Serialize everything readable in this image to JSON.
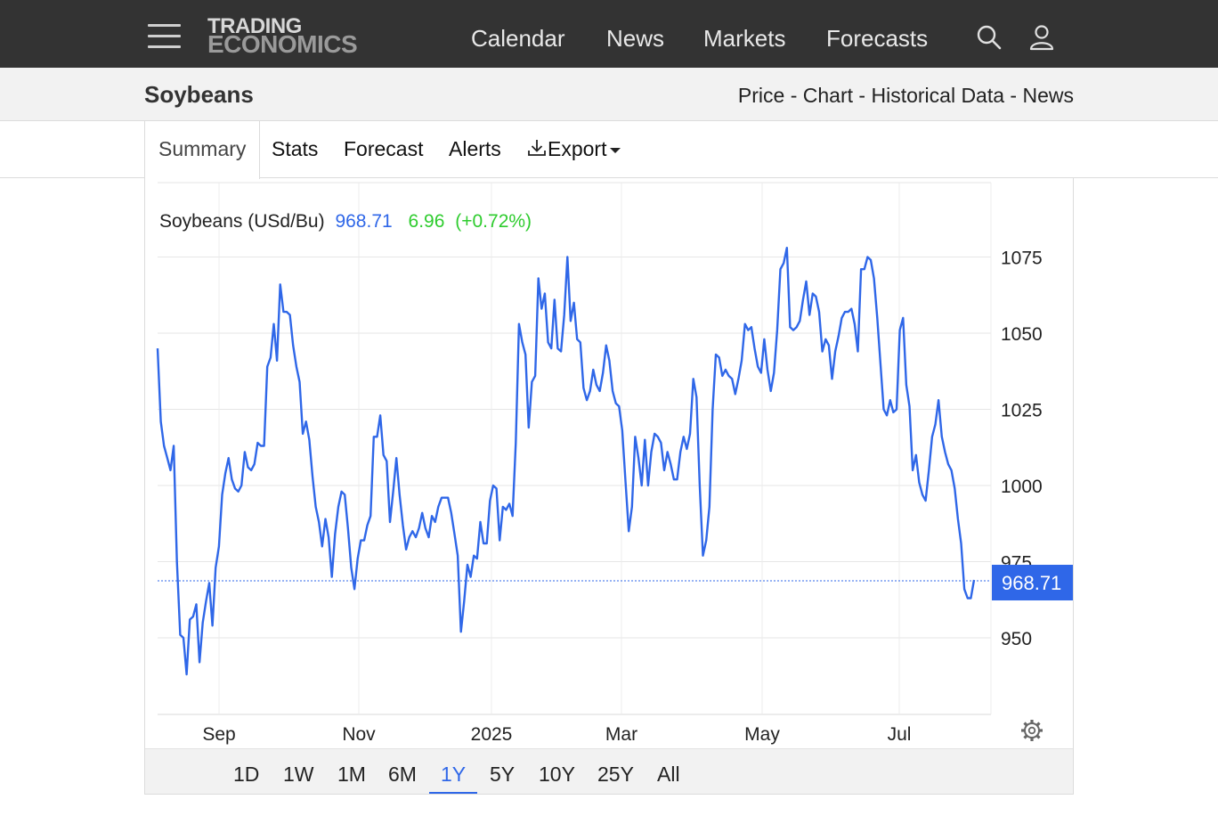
{
  "nav": {
    "logo_line1": "TRADING",
    "logo_line2": "ECONOMICS",
    "links": [
      "Calendar",
      "News",
      "Markets",
      "Forecasts"
    ],
    "icons": [
      "menu-icon",
      "search-icon",
      "user-icon"
    ]
  },
  "header": {
    "title": "Soybeans",
    "links": [
      "Price",
      "Chart",
      "Historical Data",
      "News"
    ],
    "separator": " - "
  },
  "tabs": [
    "Summary",
    "Stats",
    "Forecast",
    "Alerts",
    "Export"
  ],
  "active_tab": "Summary",
  "chart_legend": {
    "name": "Soybeans (USd/Bu)",
    "price": "968.71",
    "change": "6.96",
    "change_pct": "(+0.72%)"
  },
  "colors": {
    "line": "#2f67e8",
    "change": "#2ecc2e",
    "topbar": "#333333",
    "price_tag": "#2f67e8"
  },
  "ranges": [
    "1D",
    "1W",
    "1M",
    "6M",
    "1Y",
    "5Y",
    "10Y",
    "25Y",
    "All"
  ],
  "active_range": "1Y",
  "chart_data": {
    "type": "line",
    "title": "Soybeans (USd/Bu)",
    "xlabel": "",
    "ylabel": "",
    "x_ticks": [
      "Sep",
      "Nov",
      "2025",
      "Mar",
      "May",
      "Jul"
    ],
    "y_ticks": [
      950,
      975,
      1000,
      1025,
      1050,
      1075
    ],
    "ylim": [
      925,
      1100
    ],
    "grid": true,
    "last_value": 968.71,
    "last_label": "968.71",
    "series": [
      {
        "values": [
          1045,
          1021,
          1013,
          1009,
          1005,
          1013,
          975,
          951,
          950,
          938,
          956,
          957,
          961,
          942,
          955,
          962,
          968,
          954,
          973,
          980,
          997,
          1004,
          1009,
          1002,
          999,
          998,
          1000,
          1011,
          1006,
          1005,
          1007,
          1014,
          1013,
          1013,
          1039,
          1042,
          1053,
          1041,
          1066,
          1057,
          1057,
          1056,
          1046,
          1039,
          1034,
          1017,
          1021,
          1015,
          1003,
          993,
          988,
          980,
          989,
          983,
          970,
          984,
          993,
          998,
          997,
          986,
          973,
          966,
          976,
          982,
          982,
          987,
          990,
          1016,
          1016,
          1023,
          1010,
          1008,
          988,
          998,
          1009,
          997,
          987,
          979,
          983,
          985,
          983,
          986,
          991,
          986,
          983,
          990,
          988,
          993,
          996,
          996,
          996,
          991,
          984,
          977,
          952,
          962,
          974,
          970,
          977,
          976,
          988,
          981,
          981,
          995,
          1000,
          999,
          982,
          993,
          992,
          994,
          990,
          1014,
          1053,
          1047,
          1043,
          1019,
          1034,
          1036,
          1068,
          1058,
          1063,
          1047,
          1045,
          1061,
          1045,
          1044,
          1056,
          1075,
          1054,
          1060,
          1048,
          1047,
          1032,
          1028,
          1031,
          1038,
          1033,
          1031,
          1037,
          1046,
          1041,
          1031,
          1027,
          1026,
          1018,
          1001,
          985,
          993,
          1016,
          1009,
          1000,
          1015,
          1000,
          1011,
          1017,
          1016,
          1014,
          1005,
          1011,
          1007,
          1002,
          1002,
          1011,
          1016,
          1012,
          1017,
          1035,
          1029,
          1000,
          977,
          982,
          993,
          1025,
          1043,
          1042,
          1036,
          1038,
          1036,
          1035,
          1030,
          1035,
          1041,
          1053,
          1051,
          1052,
          1045,
          1039,
          1037,
          1048,
          1038,
          1031,
          1037,
          1051,
          1071,
          1073,
          1078,
          1052,
          1051,
          1052,
          1054,
          1061,
          1067,
          1056,
          1063,
          1062,
          1057,
          1044,
          1048,
          1046,
          1035,
          1044,
          1049,
          1055,
          1057,
          1057,
          1058,
          1053,
          1044,
          1071,
          1071,
          1075,
          1074,
          1068,
          1055,
          1040,
          1025,
          1023,
          1028,
          1024,
          1025,
          1051,
          1055,
          1033,
          1026,
          1005,
          1010,
          1001,
          997,
          995,
          1005,
          1016,
          1020,
          1028,
          1016,
          1011,
          1007,
          1005,
          999,
          989,
          981,
          966,
          963,
          963,
          969
        ]
      }
    ]
  }
}
